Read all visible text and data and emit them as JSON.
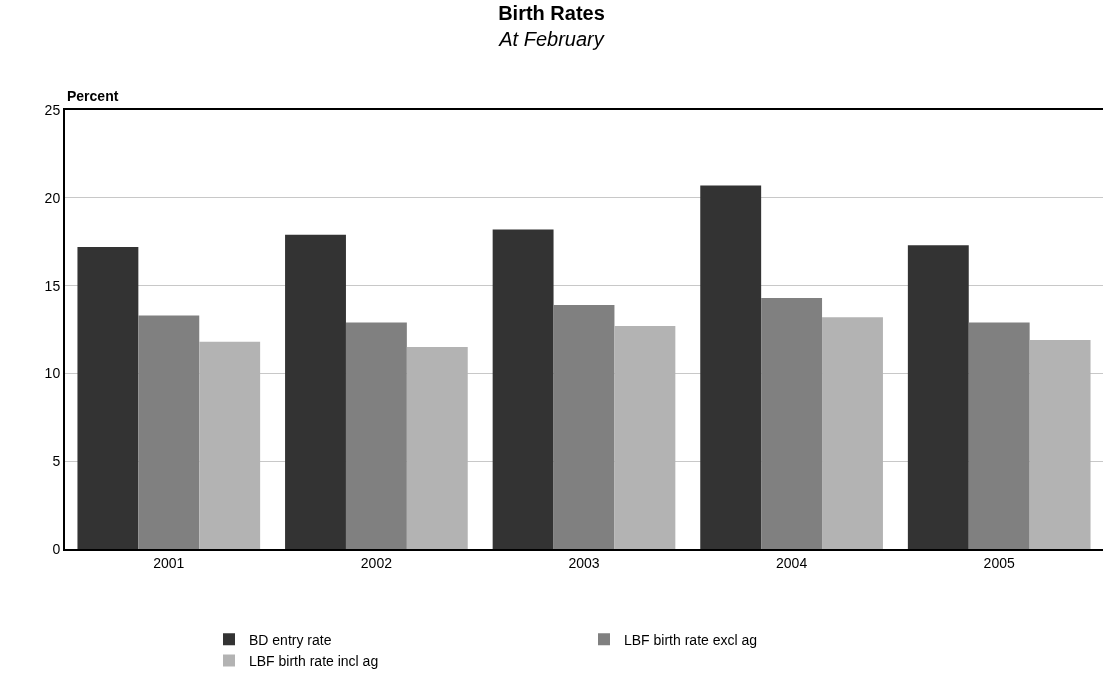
{
  "chart_data": {
    "type": "bar",
    "title": "Birth Rates",
    "subtitle": "At February",
    "ylabel": "Percent",
    "categories": [
      "2001",
      "2002",
      "2003",
      "2004",
      "2005"
    ],
    "series": [
      {
        "name": "BD entry rate",
        "color": "#333333",
        "values": [
          17.2,
          17.9,
          18.2,
          20.7,
          17.3
        ]
      },
      {
        "name": "LBF birth rate excl ag",
        "color": "#808080",
        "values": [
          13.3,
          12.9,
          13.9,
          14.3,
          12.9
        ]
      },
      {
        "name": "LBF birth rate incl ag",
        "color": "#b3b3b3",
        "values": [
          11.8,
          11.5,
          12.7,
          13.2,
          11.9
        ]
      }
    ],
    "ylim": [
      0,
      25
    ],
    "yticks": [
      0,
      5,
      10,
      15,
      20,
      25
    ],
    "grid": "y",
    "legend": "bottom"
  }
}
